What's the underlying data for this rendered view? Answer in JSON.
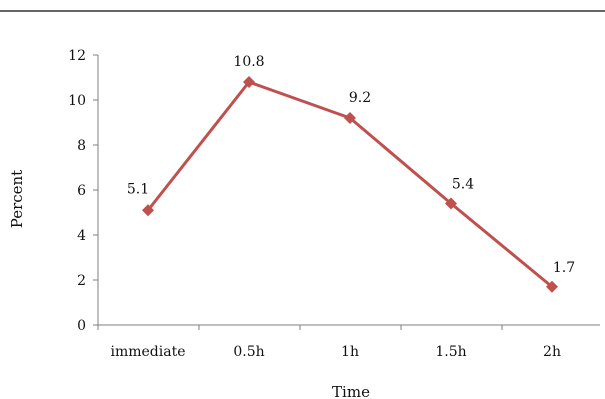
{
  "chart_data": {
    "type": "line",
    "categories": [
      "immediate",
      "0.5h",
      "1h",
      "1.5h",
      "2h"
    ],
    "series": [
      {
        "values": [
          5.1,
          10.8,
          9.2,
          5.4,
          1.7
        ]
      }
    ],
    "data_labels": [
      "5.1",
      "10.8",
      "9.2",
      "5.4",
      "1.7"
    ],
    "xlabel": "Time",
    "ylabel": "Percent",
    "ylim": [
      0,
      12
    ],
    "yticks": [
      0,
      2,
      4,
      6,
      8,
      10,
      12
    ],
    "grid": false,
    "marker": "diamond",
    "colors": {
      "series": "#c0504d",
      "axis": "#7f7f7f",
      "top_rule": "#333333"
    }
  }
}
